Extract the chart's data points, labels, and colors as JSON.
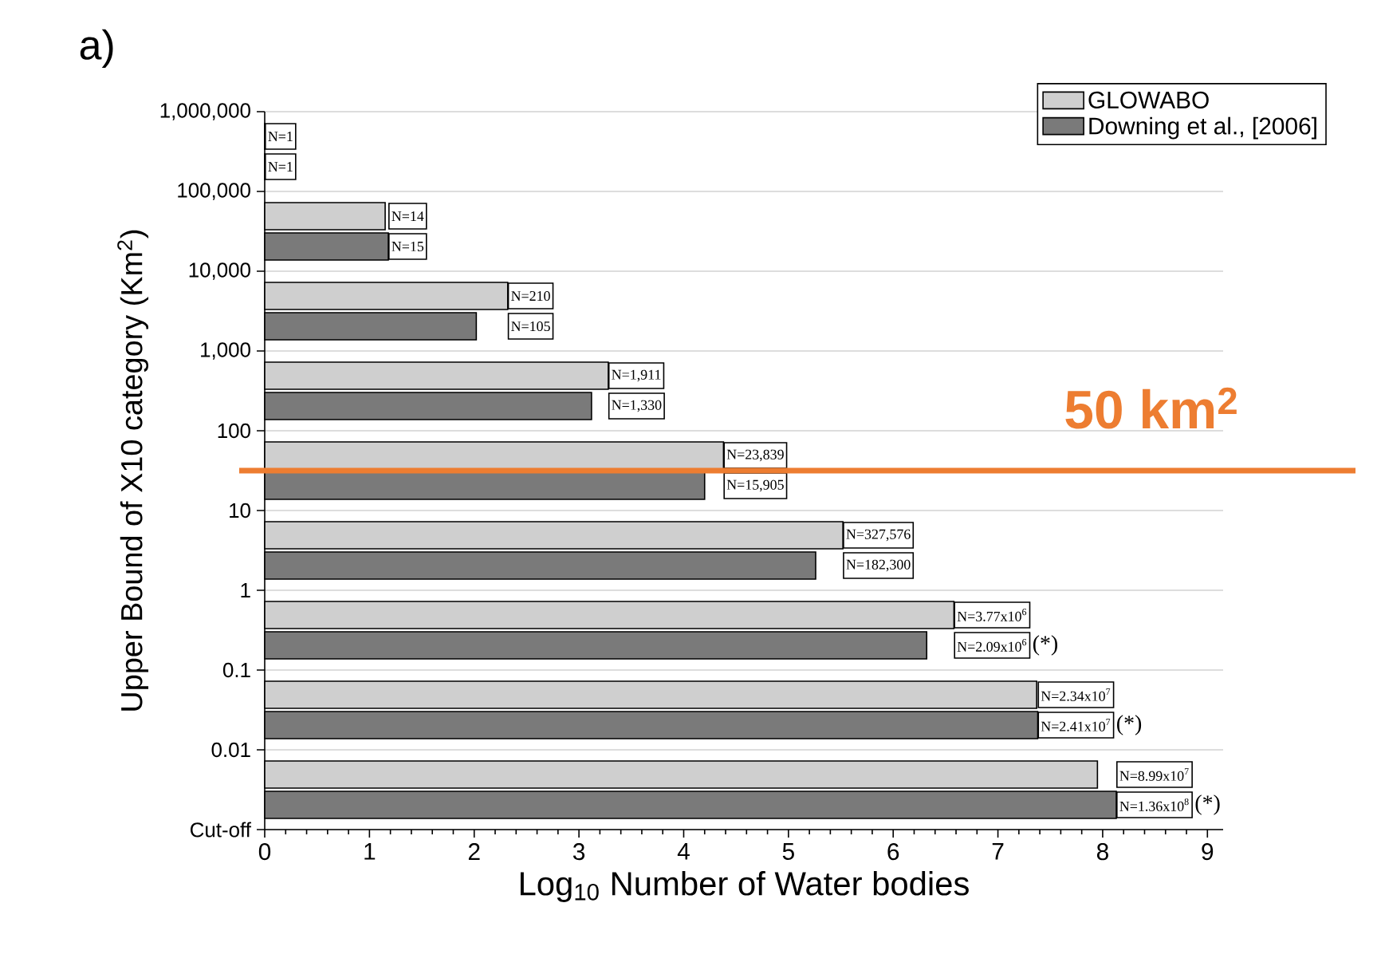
{
  "chart_data": {
    "type": "bar",
    "orientation": "horizontal",
    "title": "a)",
    "xlabel": "Log$_{10}$ Number of Water bodies",
    "ylabel": "Upper Bound of X10 category (Km$^{2}$)",
    "categories": [
      "1,000,000",
      "100,000",
      "10,000",
      "1,000",
      "100",
      "10",
      "1",
      "0.1",
      "0.01"
    ],
    "series": [
      {
        "name": "GLOWABO",
        "color": "#cfcfcf",
        "values": [
          0,
          1.15,
          2.32,
          3.28,
          4.38,
          5.52,
          6.58,
          7.37,
          7.95
        ]
      },
      {
        "name": "Downing et al., [2006]",
        "color": "#7a7a7a",
        "values": [
          0,
          1.18,
          2.02,
          3.12,
          4.2,
          5.26,
          6.32,
          7.38,
          8.13
        ]
      }
    ],
    "xlim": [
      0,
      9.15
    ],
    "xticks": [
      0,
      1,
      2,
      3,
      4,
      5,
      6,
      7,
      8,
      9
    ],
    "grid": "y",
    "legend": "top right",
    "ref_lines": [
      {
        "axis": "y",
        "value": "100",
        "label": "50 km$^{2}$",
        "color": "#ed7d31"
      }
    ],
    "annotations": [
      "Cut-off",
      "N=1",
      "N=14",
      "N=210",
      "N=1,911",
      "N=23,839",
      "N=327,576",
      "N=3.77x10$^{6}$",
      "N=2.34x10$^{7}$",
      "N=8.99x10$^{7}$",
      "N=1",
      "N=15",
      "N=105",
      "N=1,330",
      "N=15,905",
      "N=182,300",
      "N=2.09x10$^{6}$",
      "N=2.41x10$^{7}$",
      "N=1.36x10$^{8}$",
      "(*)",
      "(*)",
      "(*)"
    ]
  }
}
